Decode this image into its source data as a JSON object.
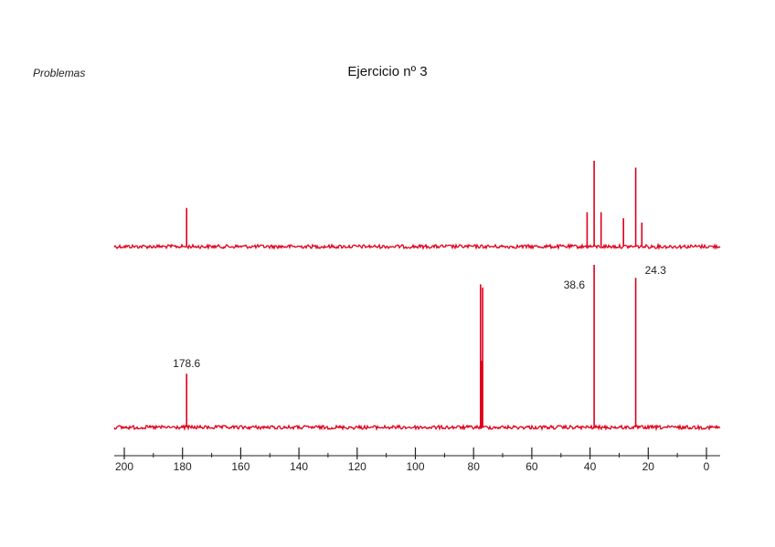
{
  "header": {
    "left_label": "Problemas",
    "title": "Ejercicio nº 3"
  },
  "chart_data": {
    "type": "line",
    "title": "Ejercicio nº 3",
    "xlabel": "",
    "ylabel": "",
    "xlim": [
      200,
      0
    ],
    "x_reversed": true,
    "grid": false,
    "legend": "none",
    "ticks": [
      200,
      180,
      160,
      140,
      120,
      100,
      80,
      60,
      40,
      20,
      0
    ],
    "tick_labels": [
      "200",
      "180",
      "160",
      "140",
      "120",
      "100",
      "80",
      "60",
      "40",
      "20",
      "0"
    ],
    "line_color": "#e0001b",
    "series": [
      {
        "peaks": [
          {
            "x": 178.6,
            "intensity": 0.45
          },
          {
            "x": 41.0,
            "intensity": 0.4
          },
          {
            "x": 38.6,
            "intensity": 1.0
          },
          {
            "x": 36.2,
            "intensity": 0.4
          },
          {
            "x": 28.5,
            "intensity": 0.33
          },
          {
            "x": 24.3,
            "intensity": 0.92
          },
          {
            "x": 22.2,
            "intensity": 0.28
          }
        ],
        "labels": []
      },
      {
        "peaks": [
          {
            "x": 178.6,
            "intensity": 0.33
          },
          {
            "x": 77.6,
            "intensity": 0.88
          },
          {
            "x": 77.2,
            "intensity": 0.41
          },
          {
            "x": 76.9,
            "intensity": 0.86
          },
          {
            "x": 38.6,
            "intensity": 1.0
          },
          {
            "x": 24.3,
            "intensity": 0.92
          }
        ],
        "labels": [
          {
            "x": 178.6,
            "text": "178.6"
          },
          {
            "x": 38.6,
            "text": "38.6"
          },
          {
            "x": 24.3,
            "text": "24.3"
          }
        ]
      }
    ]
  }
}
